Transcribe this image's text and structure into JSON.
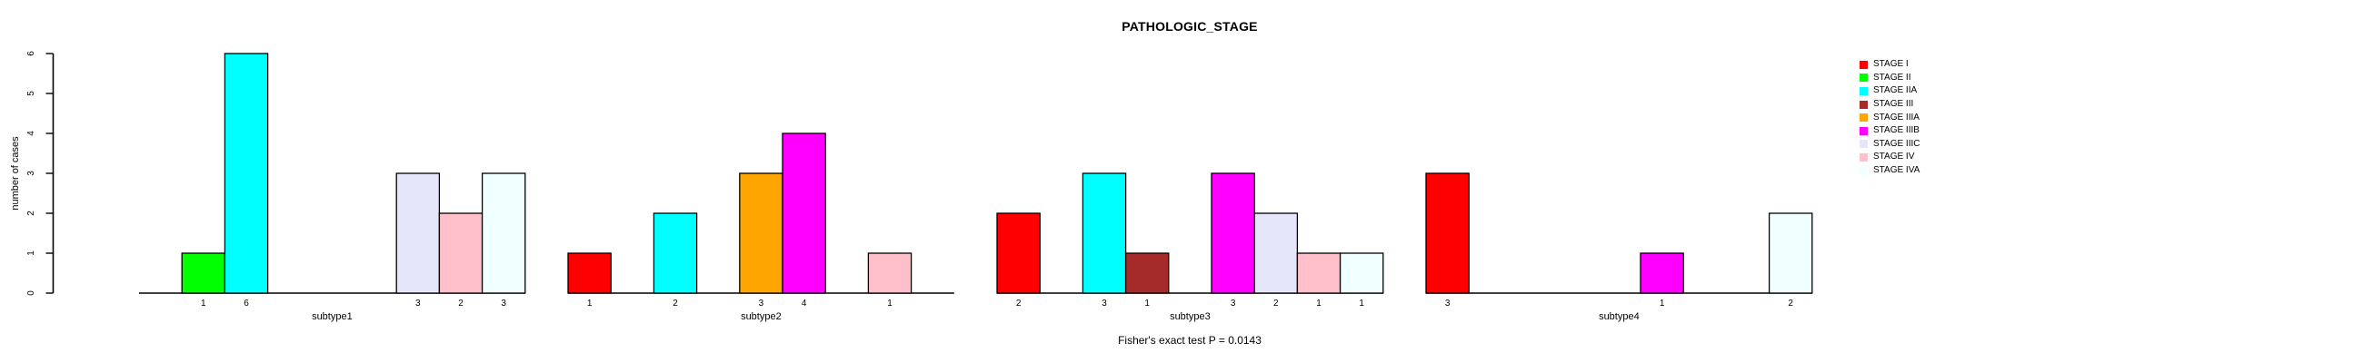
{
  "chart_data": {
    "type": "bar",
    "title": "PATHOLOGIC_STAGE",
    "ylabel": "number of cases",
    "footnote": "Fisher's exact test P = 0.0143",
    "ylim": [
      0,
      6
    ],
    "yticks": [
      0,
      1,
      2,
      3,
      4,
      5,
      6
    ],
    "grid": false,
    "legend_position": "right",
    "bar_value_labels": "shown under each nonzero bar",
    "categories": [
      "subtype1",
      "subtype2",
      "subtype3",
      "subtype4"
    ],
    "series": [
      {
        "name": "STAGE I",
        "color": "#FF0000",
        "values": [
          0,
          1,
          2,
          3
        ]
      },
      {
        "name": "STAGE II",
        "color": "#00FF00",
        "values": [
          1,
          0,
          0,
          0
        ]
      },
      {
        "name": "STAGE IIA",
        "color": "#00FFFF",
        "values": [
          6,
          2,
          3,
          0
        ]
      },
      {
        "name": "STAGE III",
        "color": "#A52A2A",
        "values": [
          0,
          0,
          1,
          0
        ]
      },
      {
        "name": "STAGE IIIA",
        "color": "#FFA500",
        "values": [
          0,
          3,
          0,
          0
        ]
      },
      {
        "name": "STAGE IIIB",
        "color": "#FF00FF",
        "values": [
          0,
          4,
          3,
          1
        ]
      },
      {
        "name": "STAGE IIIC",
        "color": "#E6E6FA",
        "values": [
          3,
          0,
          2,
          0
        ]
      },
      {
        "name": "STAGE IV",
        "color": "#FFC0CB",
        "values": [
          2,
          1,
          1,
          0
        ]
      },
      {
        "name": "STAGE IVA",
        "color": "#F0FFFF",
        "values": [
          3,
          0,
          1,
          2
        ]
      }
    ],
    "colors": {
      "axis": "#000000",
      "bar_border": "#000000",
      "background": "#FFFFFF",
      "text": "#000000"
    }
  }
}
